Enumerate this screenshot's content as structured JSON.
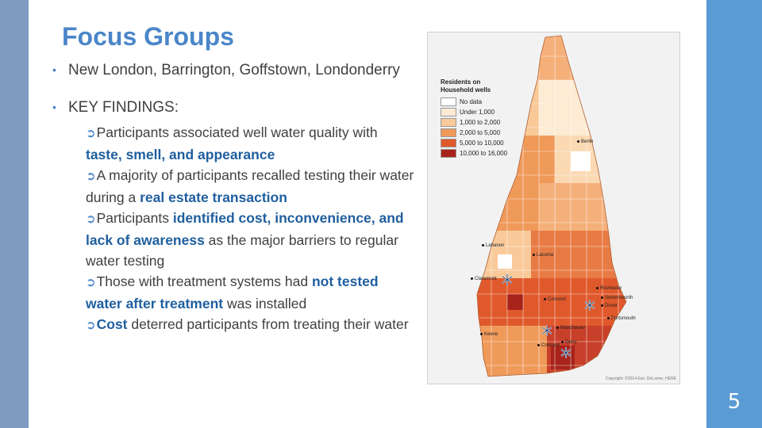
{
  "slide": {
    "title": "Focus Groups",
    "page_number": "5"
  },
  "bullets": {
    "towns": "New London, Barrington, Goffstown, Londonderry",
    "key_findings": "KEY FINDINGS:"
  },
  "findings": [
    {
      "a": "Participants associated well water quality with ",
      "b": "taste, smell, and appearance",
      "c": ""
    },
    {
      "a": "A majority of participants recalled testing their water during a ",
      "b": "real estate transaction",
      "c": ""
    },
    {
      "a": "Participants ",
      "b": "identified cost, inconvenience, and lack of awareness",
      "c": " as the major barriers to regular water testing"
    },
    {
      "a": "Those with treatment systems had ",
      "b": "not tested water after treatment",
      "c": " was installed"
    },
    {
      "a": "",
      "b": "Cost",
      "c": " deterred participants from treating their water"
    }
  ],
  "map": {
    "legend_title": "Residents on Household wells",
    "legend": [
      {
        "label": "No data",
        "color": "#ffffff"
      },
      {
        "label": "Under 1,000",
        "color": "#fdebd3"
      },
      {
        "label": "1,000 to 2,000",
        "color": "#f9c99a"
      },
      {
        "label": "2,000 to 5,000",
        "color": "#f09a5a"
      },
      {
        "label": "5,000 to 10,000",
        "color": "#e0592c"
      },
      {
        "label": "10,000 to 16,000",
        "color": "#a8231a"
      }
    ],
    "towns": [
      "Berlin",
      "Lebanon",
      "Laconia",
      "Claremont",
      "Rochester",
      "Somersworth",
      "Dover",
      "Concord",
      "Portsmouth",
      "Manchester",
      "Keene",
      "Derry",
      "Concord"
    ],
    "credit": "Copyright: ©2014 Esri, DeLorme, HERE"
  },
  "colors": {
    "accent": "#4a86c8",
    "highlight": "#1f5f9f",
    "right_bar": "#5b9bd5",
    "left_bar": "#7d9cc0"
  }
}
